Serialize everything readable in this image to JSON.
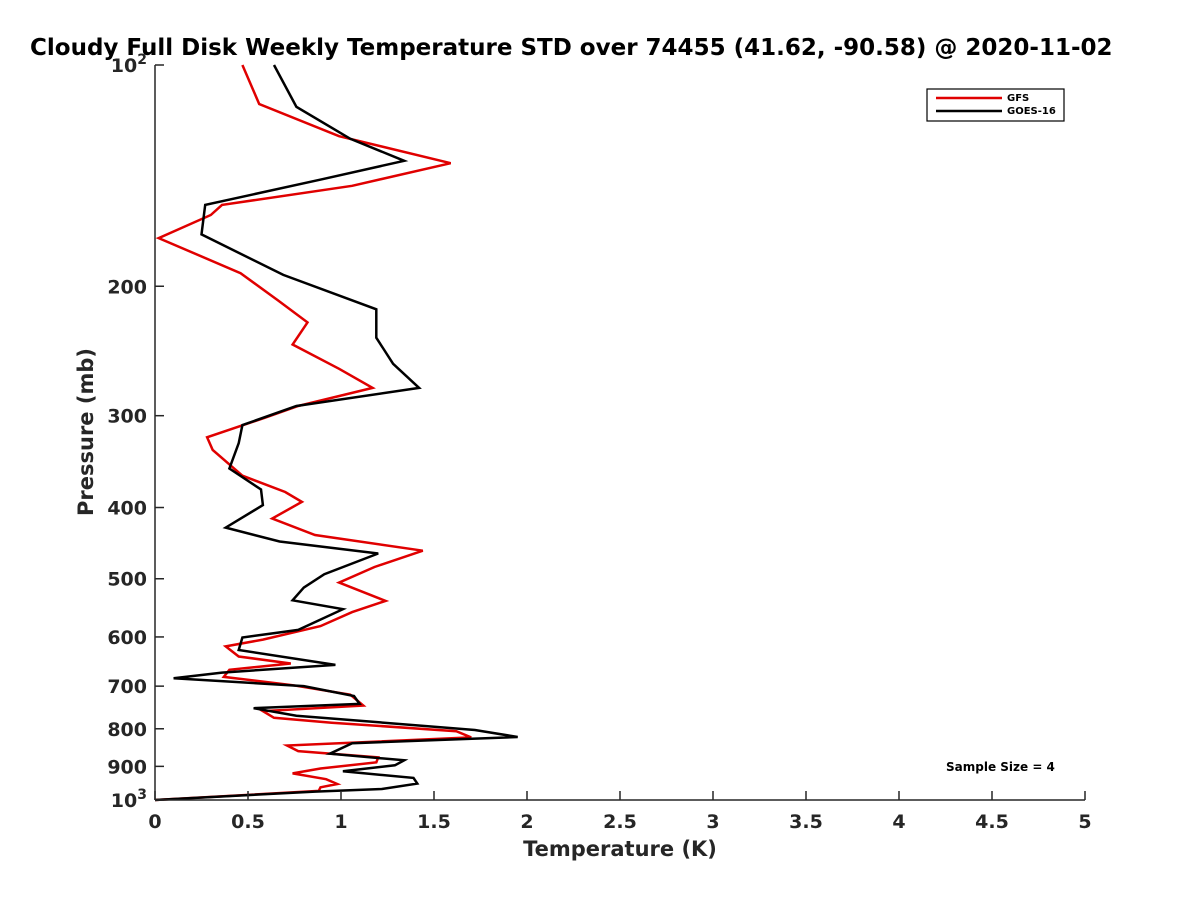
{
  "chart_data": {
    "type": "line",
    "title": "Cloudy Full Disk Weekly Temperature STD over 74455 (41.62, -90.58) @ 2020-11-02",
    "xlabel": "Temperature (K)",
    "ylabel": "Pressure (mb)",
    "xlim": [
      0,
      5
    ],
    "ylim": [
      100,
      1000
    ],
    "y_scale": "log",
    "y_reversed": true,
    "x_ticks": [
      "0",
      "0.5",
      "1",
      "1.5",
      "2",
      "2.5",
      "3",
      "3.5",
      "4",
      "4.5",
      "5"
    ],
    "y_ticks": [
      {
        "value": 100,
        "base": "10",
        "exp": "2"
      },
      {
        "value": 200,
        "label": "200"
      },
      {
        "value": 300,
        "label": "300"
      },
      {
        "value": 400,
        "label": "400"
      },
      {
        "value": 500,
        "label": "500"
      },
      {
        "value": 600,
        "label": "600"
      },
      {
        "value": 700,
        "label": "700"
      },
      {
        "value": 800,
        "label": "800"
      },
      {
        "value": 900,
        "label": "900"
      },
      {
        "value": 1000,
        "base": "10",
        "exp": "3"
      }
    ],
    "grid": false,
    "legend_position": "top-right",
    "annotation": "Sample Size = 4",
    "series": [
      {
        "name": "GFS",
        "color": "#e00000",
        "points": [
          [
            0.47,
            100
          ],
          [
            0.56,
            113
          ],
          [
            0.99,
            125
          ],
          [
            1.59,
            136
          ],
          [
            1.06,
            146
          ],
          [
            0.36,
            155
          ],
          [
            0.3,
            160
          ],
          [
            0.02,
            172
          ],
          [
            0.46,
            192
          ],
          [
            0.66,
            209
          ],
          [
            0.82,
            224
          ],
          [
            0.74,
            240
          ],
          [
            0.99,
            259
          ],
          [
            1.17,
            275
          ],
          [
            0.77,
            291
          ],
          [
            0.59,
            302
          ],
          [
            0.28,
            321
          ],
          [
            0.31,
            334
          ],
          [
            0.47,
            362
          ],
          [
            0.7,
            381
          ],
          [
            0.79,
            393
          ],
          [
            0.63,
            414
          ],
          [
            0.86,
            436
          ],
          [
            1.44,
            458
          ],
          [
            1.18,
            482
          ],
          [
            0.99,
            506
          ],
          [
            1.24,
            536
          ],
          [
            1.06,
            555
          ],
          [
            0.89,
            580
          ],
          [
            0.58,
            605
          ],
          [
            0.38,
            618
          ],
          [
            0.45,
            638
          ],
          [
            0.73,
            652
          ],
          [
            0.4,
            665
          ],
          [
            0.37,
            680
          ],
          [
            0.74,
            698
          ],
          [
            1.05,
            719
          ],
          [
            1.12,
            744
          ],
          [
            0.58,
            757
          ],
          [
            0.64,
            773
          ],
          [
            0.95,
            785
          ],
          [
            1.62,
            806
          ],
          [
            1.7,
            822
          ],
          [
            0.71,
            843
          ],
          [
            0.77,
            858
          ],
          [
            1.2,
            875
          ],
          [
            1.19,
            889
          ],
          [
            0.89,
            906
          ],
          [
            0.74,
            920
          ],
          [
            0.92,
            937
          ],
          [
            0.98,
            951
          ],
          [
            0.89,
            961
          ],
          [
            0.88,
            972
          ],
          [
            0.0,
            1000
          ]
        ]
      },
      {
        "name": "GOES-16",
        "color": "#000000",
        "points": [
          [
            0.64,
            100
          ],
          [
            0.76,
            114
          ],
          [
            1.05,
            126
          ],
          [
            1.34,
            135
          ],
          [
            0.9,
            143
          ],
          [
            0.27,
            155
          ],
          [
            0.25,
            170
          ],
          [
            0.69,
            193
          ],
          [
            1.19,
            215
          ],
          [
            1.19,
            235
          ],
          [
            1.28,
            255
          ],
          [
            1.42,
            275
          ],
          [
            0.76,
            291
          ],
          [
            0.47,
            309
          ],
          [
            0.45,
            327
          ],
          [
            0.4,
            354
          ],
          [
            0.57,
            378
          ],
          [
            0.58,
            397
          ],
          [
            0.38,
            426
          ],
          [
            0.67,
            445
          ],
          [
            1.2,
            462
          ],
          [
            0.91,
            493
          ],
          [
            0.8,
            514
          ],
          [
            0.74,
            535
          ],
          [
            1.01,
            550
          ],
          [
            0.77,
            587
          ],
          [
            0.47,
            601
          ],
          [
            0.45,
            625
          ],
          [
            0.97,
            655
          ],
          [
            0.36,
            671
          ],
          [
            0.1,
            683
          ],
          [
            0.8,
            700
          ],
          [
            1.07,
            722
          ],
          [
            1.1,
            740
          ],
          [
            0.53,
            750
          ],
          [
            0.76,
            768
          ],
          [
            1.72,
            803
          ],
          [
            1.95,
            821
          ],
          [
            1.06,
            837
          ],
          [
            0.94,
            865
          ],
          [
            1.34,
            883
          ],
          [
            1.29,
            897
          ],
          [
            1.01,
            914
          ],
          [
            1.39,
            933
          ],
          [
            1.41,
            950
          ],
          [
            1.22,
            966
          ],
          [
            0.86,
            974
          ],
          [
            0.0,
            1000
          ]
        ]
      }
    ]
  }
}
